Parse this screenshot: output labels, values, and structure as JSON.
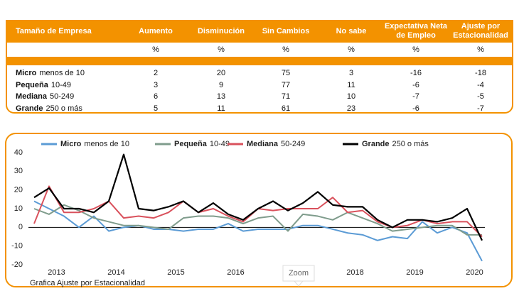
{
  "table": {
    "header": [
      "Tamaño de Empresa",
      "Aumento",
      "Disminución",
      "Sin Cambios",
      "No sabe",
      "Expectativa Neta de Empleo",
      "Ajuste por Estacionalidad"
    ],
    "units": [
      "%",
      "%",
      "%",
      "%",
      "%",
      "%"
    ],
    "rows": [
      {
        "size": "Micro",
        "range": "menos de 10",
        "values": [
          2,
          20,
          75,
          3,
          -16,
          -18
        ]
      },
      {
        "size": "Pequeña",
        "range": "10-49",
        "values": [
          3,
          9,
          77,
          11,
          -6,
          -4
        ]
      },
      {
        "size": "Mediana",
        "range": "50-249",
        "values": [
          6,
          13,
          71,
          10,
          -7,
          -5
        ]
      },
      {
        "size": "Grande",
        "range": "250 o más",
        "values": [
          5,
          11,
          61,
          23,
          -6,
          -7
        ]
      }
    ]
  },
  "chart_data": {
    "type": "line",
    "categories": [
      "2013",
      null,
      null,
      null,
      "2014",
      null,
      null,
      null,
      "2015",
      null,
      null,
      null,
      "2016",
      null,
      null,
      null,
      null,
      null,
      null,
      null,
      "2018",
      null,
      null,
      null,
      "2019",
      null,
      null,
      null,
      "2020",
      null,
      null
    ],
    "series": [
      {
        "name": "Micro",
        "color": "#5b9bd5",
        "values": [
          14,
          10,
          6,
          0,
          6,
          -2,
          0,
          1,
          -1,
          -1,
          -2,
          -1,
          -1,
          2,
          -2,
          -1,
          -1,
          -1,
          1,
          1,
          -1,
          -3,
          -4,
          -7,
          -5,
          -6,
          3,
          -3,
          0,
          -3,
          -18
        ]
      },
      {
        "name": "Pequeña",
        "color": "#7f9c8c",
        "values": [
          10,
          7,
          12,
          9,
          5,
          3,
          1,
          1,
          0,
          -1,
          5,
          6,
          6,
          5,
          2,
          5,
          6,
          -2,
          7,
          6,
          4,
          8,
          5,
          2,
          -2,
          -1,
          0,
          1,
          1,
          -4,
          -4
        ]
      },
      {
        "name": "Mediana",
        "color": "#d9515c",
        "values": [
          2,
          22,
          8,
          8,
          10,
          14,
          5,
          6,
          5,
          8,
          14,
          8,
          10,
          6,
          3,
          10,
          9,
          10,
          10,
          10,
          16,
          8,
          9,
          3,
          0,
          1,
          4,
          2,
          3,
          3,
          -5
        ]
      },
      {
        "name": "Grande",
        "color": "#000000",
        "values": [
          16,
          21,
          10,
          10,
          8,
          14,
          39,
          10,
          9,
          11,
          14,
          8,
          13,
          7,
          4,
          10,
          14,
          9,
          13,
          19,
          12,
          11,
          11,
          4,
          0,
          4,
          4,
          3,
          5,
          10,
          -7
        ]
      }
    ],
    "ylim": [
      -20,
      40
    ],
    "yticks": [
      -20,
      -10,
      0,
      10,
      20,
      30,
      40
    ],
    "caption": "Grafica Ajuste por Estacionalidad",
    "tooltip": "Zoom"
  }
}
